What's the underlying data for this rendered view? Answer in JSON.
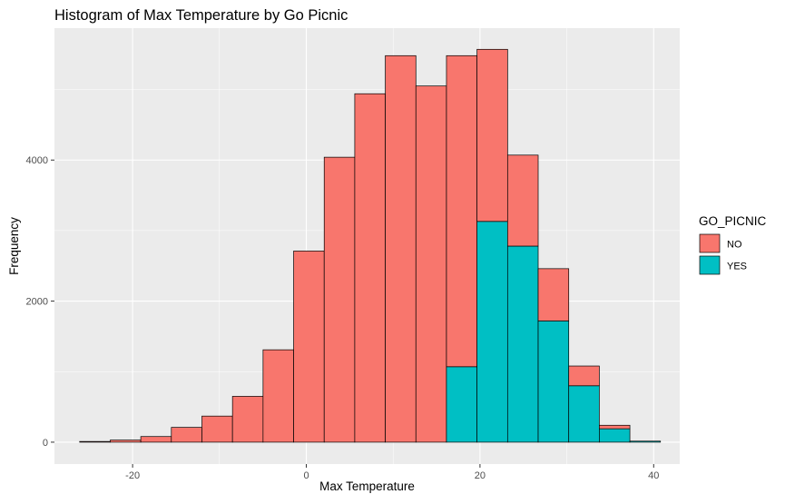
{
  "chart_data": {
    "type": "bar",
    "stacked": true,
    "title": "Histogram of Max Temperature by Go Picnic",
    "xlabel": "Max Temperature",
    "ylabel": "Frequency",
    "xlim": [
      -29,
      43
    ],
    "ylim": [
      -310,
      5870
    ],
    "x_ticks": [
      -20,
      0,
      20,
      40
    ],
    "y_ticks": [
      0,
      2000,
      4000
    ],
    "x_tick_labels": [
      "-20",
      "0",
      "20",
      "40"
    ],
    "y_tick_labels": [
      "0",
      "2000",
      "4000"
    ],
    "grid": true,
    "bin_width": 3.52,
    "bins": [
      {
        "x0": -26.1,
        "x1": -22.58,
        "no": 10,
        "yes": 0
      },
      {
        "x0": -22.58,
        "x1": -19.06,
        "no": 30,
        "yes": 0
      },
      {
        "x0": -19.06,
        "x1": -15.54,
        "no": 80,
        "yes": 0
      },
      {
        "x0": -15.54,
        "x1": -12.02,
        "no": 210,
        "yes": 0
      },
      {
        "x0": -12.02,
        "x1": -8.5,
        "no": 370,
        "yes": 0
      },
      {
        "x0": -8.5,
        "x1": -4.98,
        "no": 650,
        "yes": 0
      },
      {
        "x0": -4.98,
        "x1": -1.46,
        "no": 1310,
        "yes": 0
      },
      {
        "x0": -1.46,
        "x1": 2.06,
        "no": 2710,
        "yes": 0
      },
      {
        "x0": 2.06,
        "x1": 5.58,
        "no": 4040,
        "yes": 0
      },
      {
        "x0": 5.58,
        "x1": 9.1,
        "no": 4940,
        "yes": 0
      },
      {
        "x0": 9.1,
        "x1": 12.62,
        "no": 5480,
        "yes": 0
      },
      {
        "x0": 12.62,
        "x1": 16.14,
        "no": 5050,
        "yes": 0
      },
      {
        "x0": 16.14,
        "x1": 19.66,
        "no": 4410,
        "yes": 1070
      },
      {
        "x0": 19.66,
        "x1": 23.18,
        "no": 2440,
        "yes": 3130
      },
      {
        "x0": 23.18,
        "x1": 26.7,
        "no": 1290,
        "yes": 2780
      },
      {
        "x0": 26.7,
        "x1": 30.22,
        "no": 740,
        "yes": 1720
      },
      {
        "x0": 30.22,
        "x1": 33.74,
        "no": 280,
        "yes": 800
      },
      {
        "x0": 33.74,
        "x1": 37.26,
        "no": 50,
        "yes": 190
      },
      {
        "x0": 37.26,
        "x1": 40.78,
        "no": 0,
        "yes": 15
      }
    ],
    "series": [
      {
        "name": "NO",
        "color": "#F8766D"
      },
      {
        "name": "YES",
        "color": "#00BFC4"
      }
    ],
    "legend": {
      "title": "GO_PICNIC",
      "position": "right",
      "items": [
        "NO",
        "YES"
      ]
    },
    "colors": {
      "panel_background": "#EBEBEB",
      "grid_major": "#FFFFFF",
      "bar_outline": "#000000"
    }
  }
}
